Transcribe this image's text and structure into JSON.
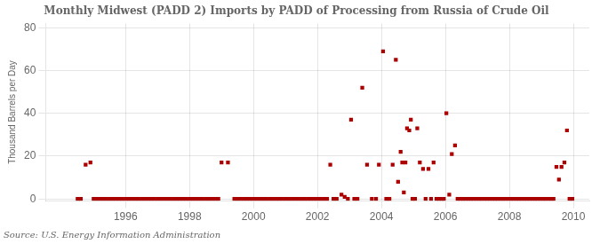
{
  "chart_data": {
    "type": "scatter",
    "title": "Monthly Midwest (PADD 2) Imports by PADD of Processing from Russia of Crude Oil",
    "ylabel": "Thousand Barrels per Day",
    "annotations": [
      "Source: U.S. Energy Information Administration"
    ],
    "color": "#AA0000",
    "marker": "square",
    "grid": true,
    "xlim": [
      1993.5,
      2010.5
    ],
    "ylim": [
      -1,
      82
    ],
    "xticks": [
      1996,
      1998,
      2000,
      2002,
      2004,
      2006,
      2008,
      2010
    ],
    "yticks": [
      0,
      20,
      40,
      60,
      80
    ],
    "x": [
      1994.75,
      1994.9,
      1994.5,
      1994.6,
      1995.0,
      1995.1,
      1995.2,
      1995.3,
      1995.4,
      1995.5,
      1995.6,
      1995.7,
      1995.8,
      1995.9,
      1996.0,
      1996.1,
      1996.2,
      1996.3,
      1996.4,
      1996.5,
      1996.6,
      1996.7,
      1996.8,
      1996.9,
      1997.0,
      1997.1,
      1997.2,
      1997.3,
      1997.4,
      1997.5,
      1997.6,
      1997.7,
      1997.8,
      1997.9,
      1998.0,
      1998.1,
      1998.2,
      1998.3,
      1998.4,
      1998.5,
      1998.6,
      1998.7,
      1998.8,
      1998.9,
      1999.0,
      1999.2,
      1999.4,
      1999.5,
      1999.6,
      1999.7,
      1999.8,
      1999.9,
      2000.0,
      2000.1,
      2000.2,
      2000.3,
      2000.4,
      2000.5,
      2000.6,
      2000.7,
      2000.8,
      2000.9,
      2001.0,
      2001.1,
      2001.2,
      2001.3,
      2001.4,
      2001.5,
      2001.6,
      2001.7,
      2001.8,
      2001.9,
      2002.0,
      2002.1,
      2002.2,
      2002.3,
      2002.4,
      2002.5,
      2002.6,
      2002.75,
      2002.85,
      2002.95,
      2003.05,
      2003.15,
      2003.25,
      2003.4,
      2003.55,
      2003.7,
      2003.83,
      2003.92,
      2004.05,
      2004.15,
      2004.25,
      2004.35,
      2004.45,
      2004.52,
      2004.6,
      2004.65,
      2004.7,
      2004.75,
      2004.8,
      2004.87,
      2004.92,
      2004.97,
      2005.05,
      2005.12,
      2005.2,
      2005.3,
      2005.38,
      2005.47,
      2005.55,
      2005.63,
      2005.72,
      2005.8,
      2005.88,
      2005.95,
      2006.03,
      2006.12,
      2006.2,
      2006.3,
      2006.38,
      2006.47,
      2006.55,
      2006.63,
      2006.72,
      2006.8,
      2006.88,
      2006.97,
      2007.05,
      2007.13,
      2007.22,
      2007.3,
      2007.38,
      2007.47,
      2007.55,
      2007.63,
      2007.72,
      2007.8,
      2007.88,
      2007.97,
      2008.05,
      2008.13,
      2008.22,
      2008.3,
      2008.38,
      2008.47,
      2008.55,
      2008.63,
      2008.72,
      2008.8,
      2008.88,
      2008.97,
      2009.05,
      2009.13,
      2009.22,
      2009.3,
      2009.38,
      2009.47,
      2009.55,
      2009.63,
      2009.72,
      2009.8,
      2009.88,
      2009.97
    ],
    "values": [
      16,
      17,
      0,
      0,
      0,
      0,
      0,
      0,
      0,
      0,
      0,
      0,
      0,
      0,
      0,
      0,
      0,
      0,
      0,
      0,
      0,
      0,
      0,
      0,
      0,
      0,
      0,
      0,
      0,
      0,
      0,
      0,
      0,
      0,
      0,
      0,
      0,
      0,
      0,
      0,
      0,
      0,
      0,
      0,
      17,
      17,
      0,
      0,
      0,
      0,
      0,
      0,
      0,
      0,
      0,
      0,
      0,
      0,
      0,
      0,
      0,
      0,
      0,
      0,
      0,
      0,
      0,
      0,
      0,
      0,
      0,
      0,
      0,
      0,
      0,
      0,
      16,
      0,
      0,
      2,
      1,
      0,
      37,
      0,
      0,
      52,
      16,
      0,
      0,
      16,
      69,
      0,
      0,
      16,
      65,
      8,
      22,
      17,
      3,
      17,
      33,
      32,
      37,
      0,
      0,
      33,
      17,
      14,
      0,
      14,
      0,
      17,
      0,
      0,
      0,
      0,
      40,
      2,
      21,
      25,
      0,
      0,
      0,
      0,
      0,
      0,
      0,
      0,
      0,
      0,
      0,
      0,
      0,
      0,
      0,
      0,
      0,
      0,
      0,
      0,
      0,
      0,
      0,
      0,
      0,
      0,
      0,
      0,
      0,
      0,
      0,
      0,
      0,
      0,
      0,
      0,
      0,
      15,
      9,
      15,
      17,
      32,
      0,
      0
    ]
  }
}
